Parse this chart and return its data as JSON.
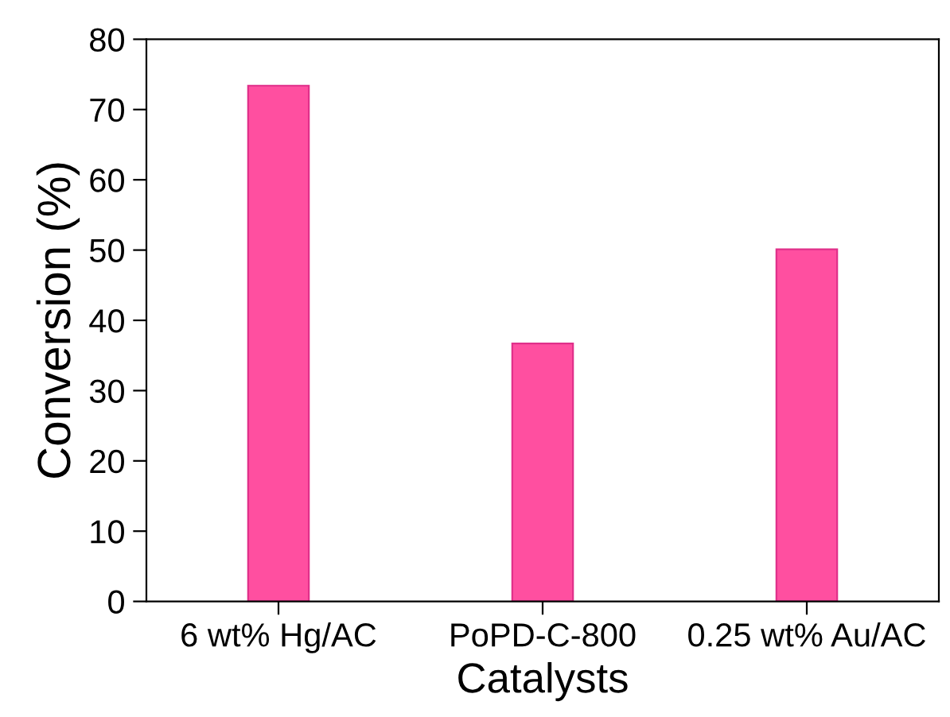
{
  "chart_data": {
    "type": "bar",
    "xlabel": "Catalysts",
    "ylabel": "Conversion (%)",
    "categories": [
      "6 wt% Hg/AC",
      "PoPD-C-800",
      "0.25 wt% Au/AC"
    ],
    "values": [
      73.4,
      36.7,
      50.1
    ],
    "color": "#ff4fa0",
    "ylim": [
      0,
      80
    ],
    "yticks": [
      0,
      10,
      20,
      30,
      40,
      50,
      60,
      70,
      80
    ],
    "grid": false
  }
}
